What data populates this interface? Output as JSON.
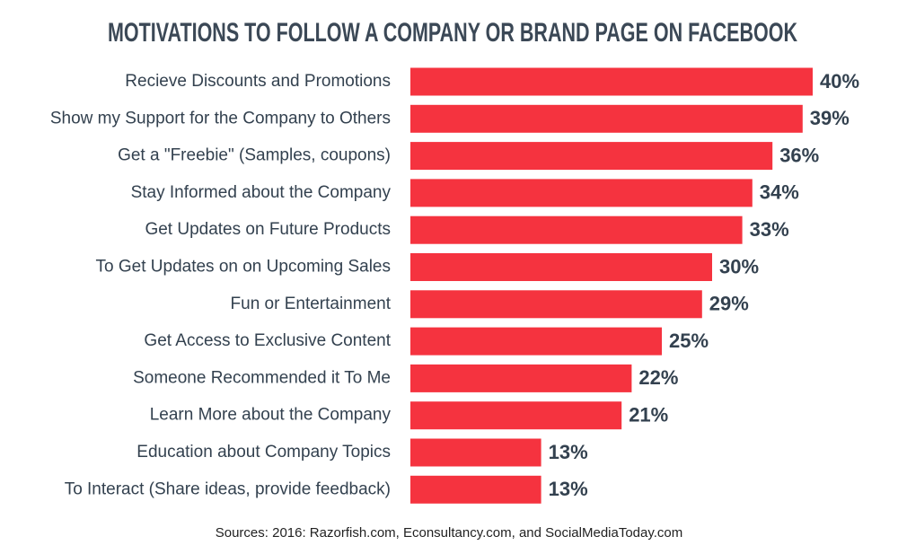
{
  "chart_data": {
    "type": "bar",
    "orientation": "horizontal",
    "title": "MOTIVATIONS TO FOLLOW A COMPANY OR BRAND PAGE ON FACEBOOK",
    "categories": [
      "Recieve Discounts and Promotions",
      "Show my Support for the Company to Others",
      "Get a \"Freebie\" (Samples, coupons)",
      "Stay Informed about the Company",
      "Get Updates on Future Products",
      "To Get Updates on on Upcoming Sales",
      "Fun or Entertainment",
      "Get Access to Exclusive Content",
      "Someone Recommended it To Me",
      "Learn More about the Company",
      "Education about Company Topics",
      "To Interact (Share ideas, provide feedback)"
    ],
    "values": [
      40,
      39,
      36,
      34,
      33,
      30,
      29,
      25,
      22,
      21,
      13,
      13
    ],
    "value_labels": [
      "40%",
      "39%",
      "36%",
      "34%",
      "33%",
      "30%",
      "29%",
      "25%",
      "22%",
      "21%",
      "13%",
      "13%"
    ],
    "color": "#f5333f",
    "source": "Sources: 2016: Razorfish.com, Econsultancy.com, and SocialMediaToday.com"
  }
}
